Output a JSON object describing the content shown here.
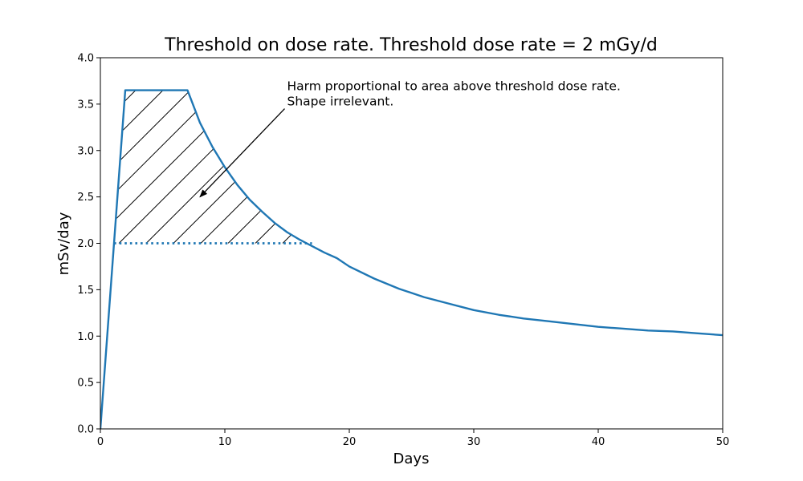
{
  "chart_data": {
    "type": "line",
    "title": "Threshold on dose rate. Threshold dose rate = 2 mGy/d",
    "xlabel": "Days",
    "ylabel": "mSv/day",
    "xlim": [
      0,
      50
    ],
    "ylim": [
      0,
      4.0
    ],
    "xticks": [
      0,
      10,
      20,
      30,
      40,
      50
    ],
    "yticks": [
      0.0,
      0.5,
      1.0,
      1.5,
      2.0,
      2.5,
      3.0,
      3.5,
      4.0
    ],
    "xtick_labels": [
      "0",
      "10",
      "20",
      "30",
      "40",
      "50"
    ],
    "ytick_labels": [
      "0.0",
      "0.5",
      "1.0",
      "1.5",
      "2.0",
      "2.5",
      "3.0",
      "3.5",
      "4.0"
    ],
    "grid": false,
    "series": [
      {
        "style": "solid",
        "color": "#1f77b4",
        "x": [
          0,
          2,
          7,
          8,
          9,
          10,
          11,
          12,
          13,
          14,
          15,
          16,
          17,
          18,
          19,
          20,
          22,
          24,
          26,
          28,
          30,
          32,
          34,
          36,
          38,
          40,
          42,
          44,
          46,
          48,
          50
        ],
        "y": [
          0,
          3.65,
          3.65,
          3.3,
          3.04,
          2.82,
          2.63,
          2.47,
          2.34,
          2.22,
          2.12,
          2.04,
          1.97,
          1.9,
          1.84,
          1.75,
          1.62,
          1.51,
          1.42,
          1.35,
          1.28,
          1.23,
          1.19,
          1.16,
          1.13,
          1.1,
          1.08,
          1.06,
          1.05,
          1.03,
          1.01
        ]
      },
      {
        "style": "dotted",
        "color": "#1f77b4",
        "x": [
          1.1,
          17
        ],
        "y": [
          2.0,
          2.0
        ]
      }
    ],
    "hatched_region": {
      "description_value": "area above threshold dose rate",
      "threshold": 2.0,
      "x_start": 1.1,
      "x_end": 17
    },
    "annotation": {
      "lines": [
        "Harm proportional to area above threshold dose rate.",
        "Shape irrelevant."
      ],
      "text_x": 15,
      "text_y": 3.65,
      "arrow_to_x": 8,
      "arrow_to_y": 2.5
    },
    "colors": {
      "line": "#1f77b4",
      "hatch": "#000000",
      "axes": "#000000"
    }
  }
}
